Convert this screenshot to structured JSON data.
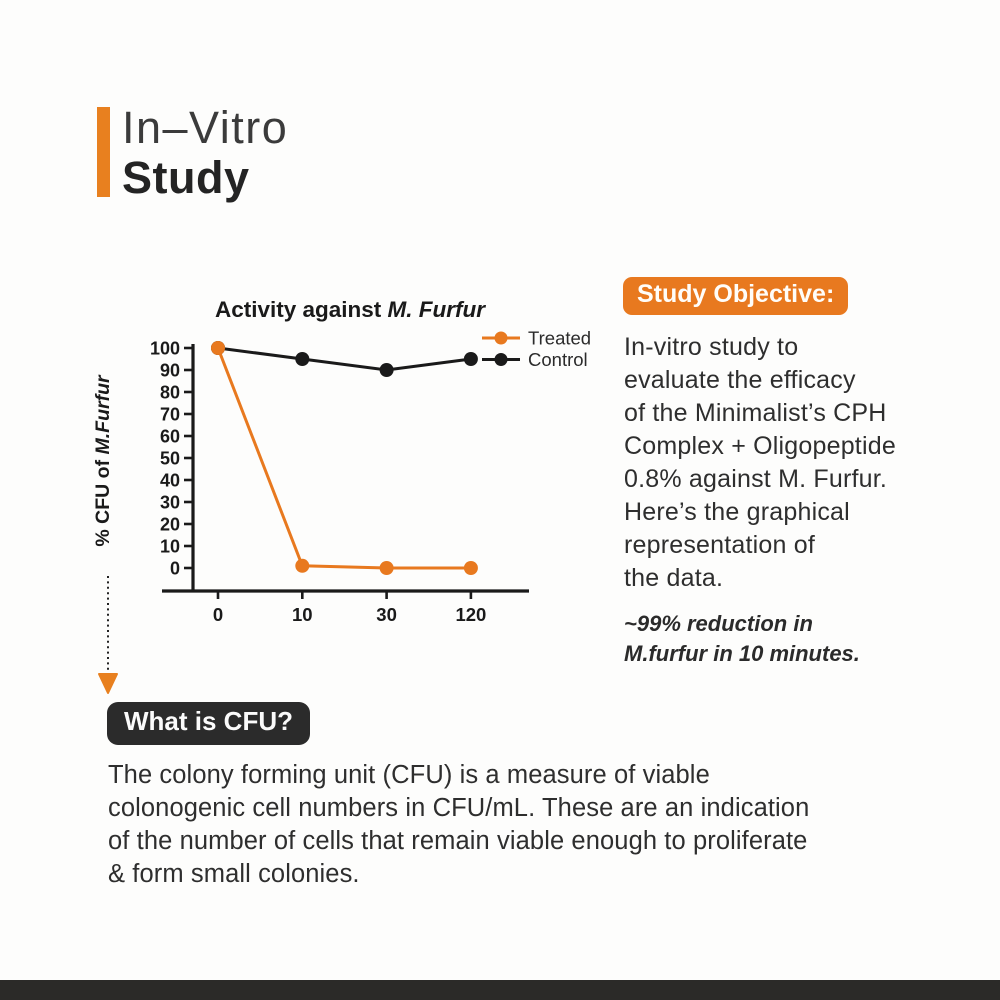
{
  "colors": {
    "accent_orange": "#e8791f",
    "treated_orange": "#e8791f",
    "control_black": "#1a1a1a",
    "badge_dark": "#2b2b2b",
    "bottom_bar": "#2b2a28",
    "background": "#fdfdfc"
  },
  "header": {
    "line1": "In–Vitro",
    "line2": "Study"
  },
  "chart_data": {
    "type": "line",
    "title_regular": "Activity against ",
    "title_italic": "M. Furfur",
    "ylabel_prefix": "% CFU of ",
    "ylabel_italic": "M.Furfur",
    "xlabel": "",
    "categories": [
      0,
      10,
      30,
      120
    ],
    "series": [
      {
        "name": "Treated",
        "color": "#e8791f",
        "values": [
          100,
          1,
          0,
          0
        ]
      },
      {
        "name": "Control",
        "color": "#1a1a1a",
        "values": [
          100,
          95,
          90,
          95
        ]
      }
    ],
    "yticks": [
      0,
      10,
      20,
      30,
      40,
      50,
      60,
      70,
      80,
      90,
      100
    ],
    "ylim": [
      0,
      100
    ],
    "grid": false,
    "legend_position": "top-right"
  },
  "objective": {
    "badge": "Study Objective:",
    "lines": [
      "In-vitro study to",
      "evaluate the efficacy",
      "of the Minimalist’s CPH",
      "Complex + Oligopeptide",
      "0.8% against M. Furfur.",
      "Here’s the graphical",
      "representation of",
      "the data."
    ],
    "note_lines": [
      "~99% reduction in",
      "M.furfur in 10 minutes."
    ]
  },
  "cfu": {
    "badge": "What is CFU?",
    "lines": [
      "The colony forming unit (CFU) is a measure of viable",
      "colonogenic cell numbers in CFU/mL. These are an indication",
      "of the number of cells that remain viable enough to proliferate",
      "& form small colonies."
    ]
  }
}
